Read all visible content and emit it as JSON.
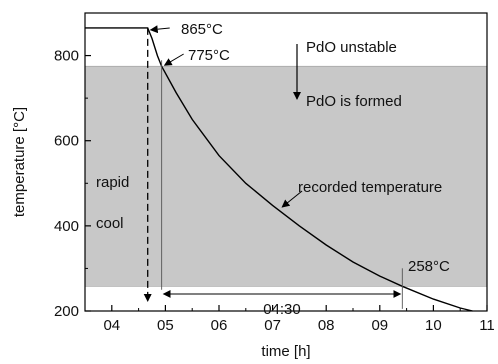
{
  "chart_data": {
    "type": "line",
    "xlabel": "time [h]",
    "ylabel": "temperature [°C]",
    "x_ticks": [
      "04",
      "05",
      "06",
      "07",
      "08",
      "09",
      "10",
      "11"
    ],
    "y_ticks": [
      200,
      400,
      600,
      800
    ],
    "xlim": [
      3.5,
      11
    ],
    "ylim": [
      200,
      900
    ],
    "grid": false,
    "shaded_band": {
      "y_from": 258,
      "y_to": 775,
      "color": "#c8c8c8"
    },
    "series": [
      {
        "points": [
          [
            3.5,
            865
          ],
          [
            4.67,
            865
          ],
          [
            4.75,
            840
          ],
          [
            4.85,
            800
          ],
          [
            4.93,
            775
          ],
          [
            5.2,
            713
          ],
          [
            5.5,
            650
          ],
          [
            6.0,
            565
          ],
          [
            6.5,
            500
          ],
          [
            7.0,
            448
          ],
          [
            7.5,
            400
          ],
          [
            8.0,
            355
          ],
          [
            8.5,
            315
          ],
          [
            9.0,
            282
          ],
          [
            9.42,
            258
          ],
          [
            10.0,
            228
          ],
          [
            10.5,
            207
          ],
          [
            10.73,
            200
          ]
        ],
        "color": "#000000"
      }
    ],
    "annotations": {
      "t865": "865°C",
      "t775": "775°C",
      "t258": "258°C",
      "pdo_unstable": "PdO unstable",
      "pdo_formed": "PdO is formed",
      "rapid": "rapid",
      "cool": "cool",
      "recorded": "recorded temperature",
      "duration": "04:30"
    }
  }
}
